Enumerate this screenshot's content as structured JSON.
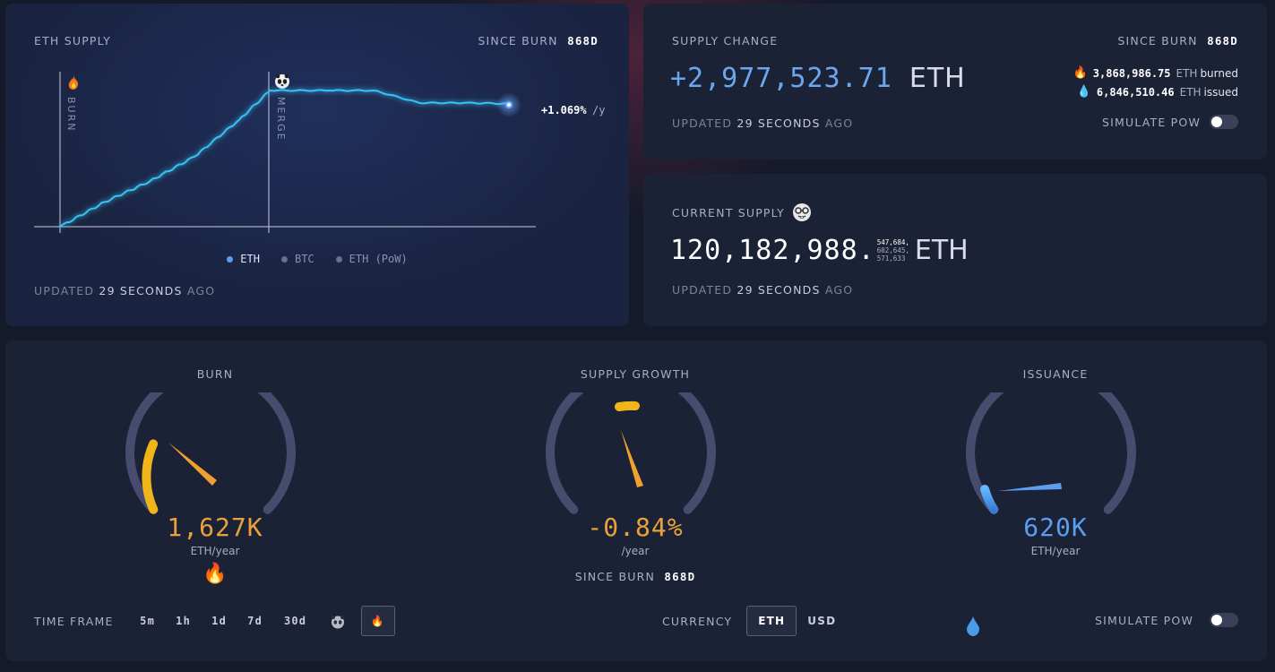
{
  "supply_chart": {
    "title": "ETH SUPPLY",
    "since_label": "SINCE BURN",
    "since_value": "868d",
    "burn_marker": "BURN",
    "merge_marker": "MERGE",
    "rate": "+1.069%",
    "rate_unit": "/y",
    "legend": [
      {
        "label": "ETH",
        "active": true,
        "color": "#5b9ef0"
      },
      {
        "label": "BTC",
        "active": false,
        "color": "#6b7088"
      },
      {
        "label": "ETH (PoW)",
        "active": false,
        "color": "#6b7088"
      }
    ],
    "updated_prefix": "UPDATED",
    "updated_value": "29 SECONDS",
    "updated_suffix": "AGO",
    "chart_data": {
      "type": "line",
      "series": [
        {
          "name": "ETH",
          "x": [
            0,
            50,
            100,
            150,
            200,
            234,
            300,
            350,
            400,
            450,
            500
          ],
          "values": [
            117.2,
            117.8,
            118.3,
            118.9,
            119.8,
            120.5,
            120.5,
            120.5,
            120.2,
            120.2,
            120.18
          ]
        }
      ],
      "line_color": "#39c2f2"
    }
  },
  "supply_change": {
    "title": "SUPPLY CHANGE",
    "since_label": "SINCE BURN",
    "since_value": "868d",
    "value": "+2,977,523.71",
    "unit": "ETH",
    "burned_value": "3,868,986.75",
    "burned_unit": "ETH",
    "burned_label": "burned",
    "issued_value": "6,846,510.46",
    "issued_unit": "ETH",
    "issued_label": "issued",
    "updated_prefix": "UPDATED",
    "updated_value": "29 SECONDS",
    "updated_suffix": "AGO",
    "simulate_label": "SIMULATE PoW",
    "simulate_on": false,
    "value_color": "#6aa7f0"
  },
  "current_supply": {
    "title": "CURRENT SUPPLY",
    "integer": "120,182,988.",
    "decimals": [
      "547,684,",
      "602,645,",
      "571,633"
    ],
    "unit": "ETH",
    "updated_prefix": "UPDATED",
    "updated_value": "29 SECONDS",
    "updated_suffix": "AGO"
  },
  "gauges": {
    "burn": {
      "title": "BURN",
      "value": "1,627K",
      "unit": "ETH/year",
      "color": "#e9a23b",
      "icon": "fire-icon"
    },
    "growth": {
      "title": "SUPPLY GROWTH",
      "value": "-0.84%",
      "unit": "/year",
      "color": "#e9a23b",
      "since_label": "SINCE BURN",
      "since_value": "868d"
    },
    "issuance": {
      "title": "ISSUANCE",
      "value": "620K",
      "unit": "ETH/year",
      "color": "#5b9ef0",
      "icon": "droplet-icon"
    }
  },
  "controls": {
    "timeframe_label": "TIME FRAME",
    "timeframes": [
      "5m",
      "1h",
      "1d",
      "7d",
      "30d"
    ],
    "currency_label": "CURRENCY",
    "currencies": [
      "ETH",
      "USD"
    ],
    "selected_currency": "ETH",
    "simulate_label": "SIMULATE PoW",
    "simulate_on": false
  }
}
